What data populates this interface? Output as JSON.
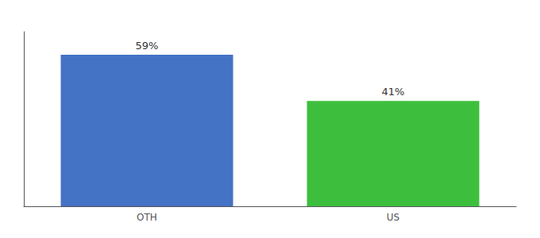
{
  "chart_data": {
    "type": "bar",
    "categories": [
      "OTH",
      "US"
    ],
    "values": [
      59,
      41
    ],
    "value_labels": [
      "59%",
      "41%"
    ],
    "colors": [
      "#4472C4",
      "#3DBF3D"
    ],
    "ylim": [
      0,
      68
    ],
    "data_labels": true,
    "tick_labels": "x",
    "grid": false
  }
}
